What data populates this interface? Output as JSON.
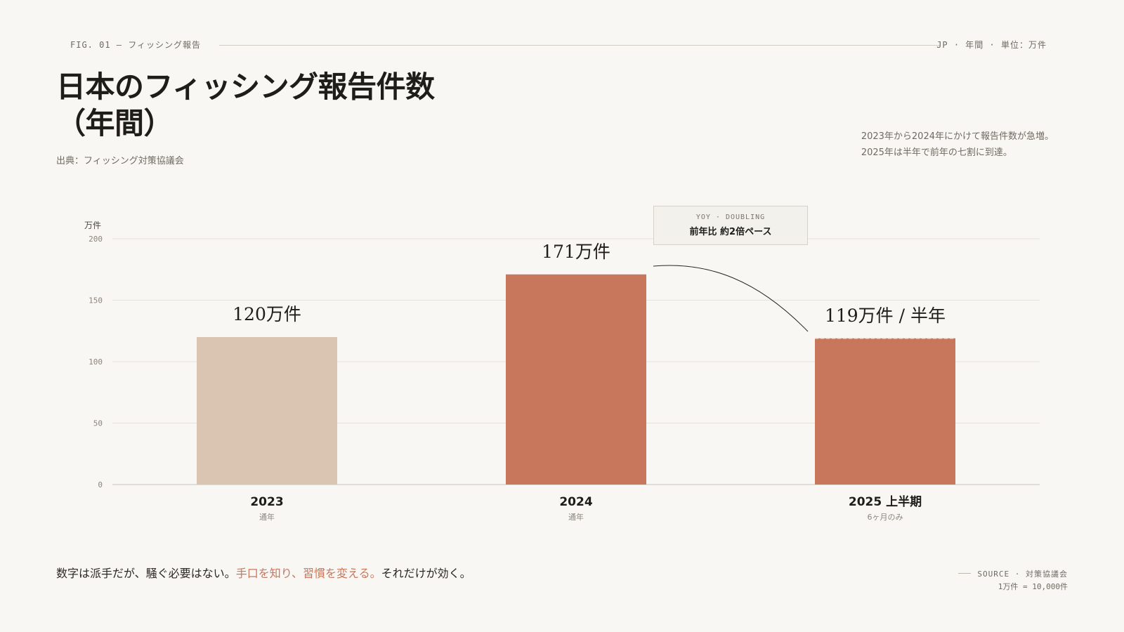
{
  "header": {
    "fig_label": "FIG. 01 — フィッシング報告",
    "meta_right": "JP · 年間 · 単位：万件",
    "title_line1": "日本のフィッシング報告件数",
    "title_line2": "（年間）",
    "source": "出典：フィッシング対策協議会",
    "note_line1": "2023年から2024年にかけて報告件数が急増。",
    "note_line2": "2025年は半年で前年の七割に到達。"
  },
  "callout": {
    "top": "YOY · DOUBLING",
    "main": "前年比 約2倍ペース"
  },
  "footer": {
    "tagline_plain1": "数字は派手だが、騒ぐ必要はない。",
    "tagline_accent": "手口を知り、習慣を変える。",
    "tagline_plain2": "それだけが効く。",
    "source": "SOURCE · 対策協議会",
    "unit_note": "1万件 = 10,000件"
  },
  "colors": {
    "accent": "#c8775c",
    "muted_bar": "#d9c5b1",
    "background": "#f9f7f3",
    "text": "#1f1d1a"
  },
  "chart_data": {
    "type": "bar",
    "categories": [
      "2023",
      "2024",
      "2025 上半期"
    ],
    "category_sublabels": [
      "通年",
      "通年",
      "6ヶ月のみ"
    ],
    "values": [
      120,
      171,
      119
    ],
    "value_labels": [
      "120万件",
      "171万件",
      "119万件 / 半年"
    ],
    "bar_colors": [
      "#d9c5b1",
      "#c8775c",
      "#c8775c"
    ],
    "ylabel": "万件",
    "ylim": [
      0,
      200
    ],
    "yticks": [
      0,
      50,
      100,
      150,
      200
    ],
    "grid": true
  }
}
